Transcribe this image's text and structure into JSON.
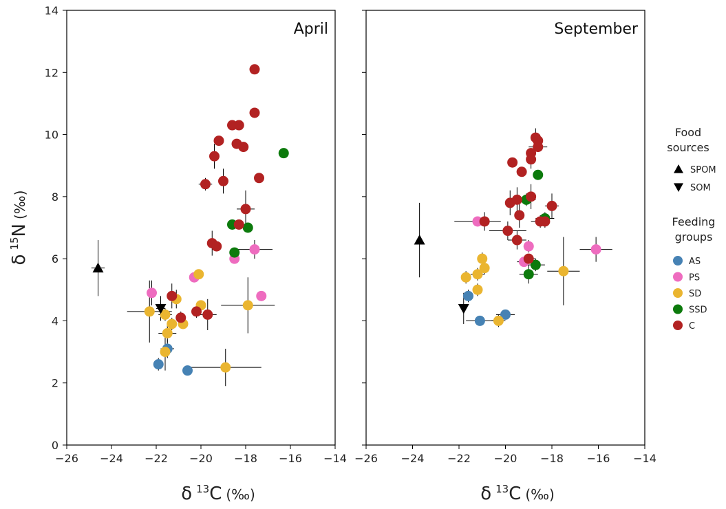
{
  "chart_data": {
    "type": "scatter",
    "shared": {
      "xlim": [
        -26,
        -14
      ],
      "ylim": [
        0,
        14
      ],
      "xticks": [
        "−26",
        "−24",
        "−22",
        "−20",
        "−18",
        "−16",
        "−14"
      ],
      "yticks": [
        "0",
        "2",
        "4",
        "6",
        "8",
        "10",
        "12",
        "14"
      ],
      "xlabel": {
        "delta": "δ",
        "sup": "13",
        "elem": "C",
        "unit": "(‰)"
      },
      "ylabel": {
        "delta": "δ",
        "sup": "15",
        "elem": "N",
        "unit": "(‰)"
      }
    },
    "legend": {
      "placement": "right",
      "sources_title": [
        "Food",
        "sources"
      ],
      "groups_title": [
        "Feeding",
        "groups"
      ],
      "source_items": [
        {
          "key": "SPOM",
          "label": "SPOM",
          "marker": "triangle-up"
        },
        {
          "key": "SOM",
          "label": "SOM",
          "marker": "triangle-down"
        }
      ],
      "group_items": [
        {
          "key": "AS",
          "label": "AS",
          "color": "#4682b4"
        },
        {
          "key": "PS",
          "label": "PS",
          "color": "#ee6cbf"
        },
        {
          "key": "SD",
          "label": "SD",
          "color": "#eab530"
        },
        {
          "key": "SSD",
          "label": "SSD",
          "color": "#0c7a0c"
        },
        {
          "key": "C",
          "label": "C",
          "color": "#b22222"
        }
      ]
    },
    "panels": [
      {
        "title": "April",
        "sources": [
          {
            "group": "SPOM",
            "x": -24.6,
            "y": 5.7,
            "xerr": 0.3,
            "yerr": 0.9
          },
          {
            "group": "SOM",
            "x": -21.8,
            "y": 4.4,
            "xerr": 0.2,
            "yerr": 0.4
          }
        ],
        "points": [
          {
            "group": "AS",
            "x": -21.9,
            "y": 2.6,
            "xerr": 0.2,
            "yerr": 0.2
          },
          {
            "group": "AS",
            "x": -21.5,
            "y": 3.1,
            "xerr": 0.3,
            "yerr": 0.3
          },
          {
            "group": "AS",
            "x": -20.6,
            "y": 2.4,
            "xerr": 0.1,
            "yerr": 0.1
          },
          {
            "group": "PS",
            "x": -22.2,
            "y": 4.9,
            "xerr": 0.1,
            "yerr": 0.4
          },
          {
            "group": "PS",
            "x": -20.3,
            "y": 5.4,
            "xerr": 0.1,
            "yerr": 0.1
          },
          {
            "group": "PS",
            "x": -18.5,
            "y": 6.0,
            "xerr": 0.1,
            "yerr": 0.1
          },
          {
            "group": "PS",
            "x": -17.6,
            "y": 6.3,
            "xerr": 0.8,
            "yerr": 0.3
          },
          {
            "group": "PS",
            "x": -17.3,
            "y": 4.8,
            "xerr": 0.1,
            "yerr": 0.1
          },
          {
            "group": "SD",
            "x": -22.3,
            "y": 4.3,
            "xerr": 1.0,
            "yerr": 1.0
          },
          {
            "group": "SD",
            "x": -21.6,
            "y": 4.2,
            "xerr": 0.3,
            "yerr": 0.2
          },
          {
            "group": "SD",
            "x": -21.5,
            "y": 3.6,
            "xerr": 0.4,
            "yerr": 0.3
          },
          {
            "group": "SD",
            "x": -21.6,
            "y": 3.0,
            "xerr": 0.1,
            "yerr": 0.6
          },
          {
            "group": "SD",
            "x": -21.3,
            "y": 3.9,
            "xerr": 0.2,
            "yerr": 0.2
          },
          {
            "group": "SD",
            "x": -21.1,
            "y": 4.7,
            "xerr": 0.1,
            "yerr": 0.3
          },
          {
            "group": "SD",
            "x": -20.8,
            "y": 3.9,
            "xerr": 0.1,
            "yerr": 0.1
          },
          {
            "group": "SD",
            "x": -20.1,
            "y": 5.5,
            "xerr": 0.1,
            "yerr": 0.1
          },
          {
            "group": "SD",
            "x": -20.0,
            "y": 4.5,
            "xerr": 0.2,
            "yerr": 0.1
          },
          {
            "group": "SD",
            "x": -17.9,
            "y": 4.5,
            "xerr": 1.2,
            "yerr": 0.9
          },
          {
            "group": "SD",
            "x": -18.9,
            "y": 2.5,
            "xerr": 1.6,
            "yerr": 0.6
          },
          {
            "group": "SSD",
            "x": -18.6,
            "y": 7.1,
            "xerr": 0.1,
            "yerr": 0.1
          },
          {
            "group": "SSD",
            "x": -18.5,
            "y": 6.2,
            "xerr": 0.1,
            "yerr": 0.1
          },
          {
            "group": "SSD",
            "x": -17.9,
            "y": 7.0,
            "xerr": 0.1,
            "yerr": 0.1
          },
          {
            "group": "SSD",
            "x": -16.3,
            "y": 9.4,
            "xerr": 0.1,
            "yerr": 0.1
          },
          {
            "group": "C",
            "x": -21.3,
            "y": 4.8,
            "xerr": 0.2,
            "yerr": 0.4
          },
          {
            "group": "C",
            "x": -20.9,
            "y": 4.1,
            "xerr": 0.2,
            "yerr": 0.2
          },
          {
            "group": "C",
            "x": -20.2,
            "y": 4.3,
            "xerr": 0.2,
            "yerr": 0.2
          },
          {
            "group": "C",
            "x": -19.7,
            "y": 4.2,
            "xerr": 0.4,
            "yerr": 0.5
          },
          {
            "group": "C",
            "x": -19.8,
            "y": 8.4,
            "xerr": 0.3,
            "yerr": 0.2
          },
          {
            "group": "C",
            "x": -19.5,
            "y": 6.5,
            "xerr": 0.2,
            "yerr": 0.4
          },
          {
            "group": "C",
            "x": -19.3,
            "y": 6.4,
            "xerr": 0.1,
            "yerr": 0.1
          },
          {
            "group": "C",
            "x": -19.4,
            "y": 9.3,
            "xerr": 0.1,
            "yerr": 0.4
          },
          {
            "group": "C",
            "x": -19.2,
            "y": 9.8,
            "xerr": 0.1,
            "yerr": 0.1
          },
          {
            "group": "C",
            "x": -19.0,
            "y": 8.5,
            "xerr": 0.1,
            "yerr": 0.4
          },
          {
            "group": "C",
            "x": -18.6,
            "y": 10.3,
            "xerr": 0.1,
            "yerr": 0.1
          },
          {
            "group": "C",
            "x": -18.3,
            "y": 10.3,
            "xerr": 0.1,
            "yerr": 0.1
          },
          {
            "group": "C",
            "x": -18.4,
            "y": 9.7,
            "xerr": 0.1,
            "yerr": 0.1
          },
          {
            "group": "C",
            "x": -18.1,
            "y": 9.6,
            "xerr": 0.1,
            "yerr": 0.1
          },
          {
            "group": "C",
            "x": -18.3,
            "y": 7.1,
            "xerr": 0.2,
            "yerr": 0.1
          },
          {
            "group": "C",
            "x": -18.0,
            "y": 7.6,
            "xerr": 0.4,
            "yerr": 0.6
          },
          {
            "group": "C",
            "x": -17.6,
            "y": 12.1,
            "xerr": 0.1,
            "yerr": 0.1
          },
          {
            "group": "C",
            "x": -17.6,
            "y": 10.7,
            "xerr": 0.1,
            "yerr": 0.1
          },
          {
            "group": "C",
            "x": -17.4,
            "y": 8.6,
            "xerr": 0.1,
            "yerr": 0.1
          }
        ]
      },
      {
        "title": "September",
        "sources": [
          {
            "group": "SPOM",
            "x": -23.7,
            "y": 6.6,
            "xerr": 0.1,
            "yerr": 1.2
          },
          {
            "group": "SOM",
            "x": -21.8,
            "y": 4.4,
            "xerr": 0.1,
            "yerr": 0.5
          }
        ],
        "points": [
          {
            "group": "AS",
            "x": -21.6,
            "y": 4.8,
            "xerr": 0.1,
            "yerr": 0.2
          },
          {
            "group": "AS",
            "x": -21.1,
            "y": 4.0,
            "xerr": 0.6,
            "yerr": 0.1
          },
          {
            "group": "AS",
            "x": -20.0,
            "y": 4.2,
            "xerr": 0.4,
            "yerr": 0.1
          },
          {
            "group": "PS",
            "x": -21.2,
            "y": 7.2,
            "xerr": 1.0,
            "yerr": 0.1
          },
          {
            "group": "PS",
            "x": -19.2,
            "y": 5.9,
            "xerr": 0.3,
            "yerr": 0.1
          },
          {
            "group": "PS",
            "x": -19.0,
            "y": 6.4,
            "xerr": 0.1,
            "yerr": 0.2
          },
          {
            "group": "PS",
            "x": -16.1,
            "y": 6.3,
            "xerr": 0.7,
            "yerr": 0.4
          },
          {
            "group": "SD",
            "x": -21.7,
            "y": 5.4,
            "xerr": 0.1,
            "yerr": 0.2
          },
          {
            "group": "SD",
            "x": -21.2,
            "y": 5.5,
            "xerr": 0.3,
            "yerr": 0.2
          },
          {
            "group": "SD",
            "x": -21.2,
            "y": 5.0,
            "xerr": 0.1,
            "yerr": 0.2
          },
          {
            "group": "SD",
            "x": -21.0,
            "y": 6.0,
            "xerr": 0.1,
            "yerr": 0.2
          },
          {
            "group": "SD",
            "x": -20.9,
            "y": 5.7,
            "xerr": 0.1,
            "yerr": 0.2
          },
          {
            "group": "SD",
            "x": -20.3,
            "y": 4.0,
            "xerr": 0.3,
            "yerr": 0.2
          },
          {
            "group": "SD",
            "x": -17.5,
            "y": 5.6,
            "xerr": 0.7,
            "yerr": 1.1
          },
          {
            "group": "SSD",
            "x": -19.1,
            "y": 7.9,
            "xerr": 0.4,
            "yerr": 0.2
          },
          {
            "group": "SSD",
            "x": -19.0,
            "y": 5.5,
            "xerr": 0.4,
            "yerr": 0.3
          },
          {
            "group": "SSD",
            "x": -18.7,
            "y": 5.8,
            "xerr": 0.4,
            "yerr": 0.2
          },
          {
            "group": "SSD",
            "x": -18.3,
            "y": 7.3,
            "xerr": 0.4,
            "yerr": 0.2
          },
          {
            "group": "SSD",
            "x": -18.6,
            "y": 8.7,
            "xerr": 0.1,
            "yerr": 0.1
          },
          {
            "group": "C",
            "x": -20.9,
            "y": 7.2,
            "xerr": 0.3,
            "yerr": 0.3
          },
          {
            "group": "C",
            "x": -19.9,
            "y": 6.9,
            "xerr": 0.8,
            "yerr": 0.3
          },
          {
            "group": "C",
            "x": -19.8,
            "y": 7.8,
            "xerr": 0.2,
            "yerr": 0.4
          },
          {
            "group": "C",
            "x": -19.5,
            "y": 7.9,
            "xerr": 0.3,
            "yerr": 0.4
          },
          {
            "group": "C",
            "x": -19.5,
            "y": 6.6,
            "xerr": 0.4,
            "yerr": 0.3
          },
          {
            "group": "C",
            "x": -19.4,
            "y": 7.4,
            "xerr": 0.1,
            "yerr": 0.4
          },
          {
            "group": "C",
            "x": -19.7,
            "y": 9.1,
            "xerr": 0.1,
            "yerr": 0.1
          },
          {
            "group": "C",
            "x": -19.3,
            "y": 8.8,
            "xerr": 0.1,
            "yerr": 0.1
          },
          {
            "group": "C",
            "x": -18.9,
            "y": 8.0,
            "xerr": 0.1,
            "yerr": 0.4
          },
          {
            "group": "C",
            "x": -18.9,
            "y": 9.2,
            "xerr": 0.1,
            "yerr": 0.3
          },
          {
            "group": "C",
            "x": -18.9,
            "y": 9.4,
            "xerr": 0.1,
            "yerr": 0.1
          },
          {
            "group": "C",
            "x": -18.7,
            "y": 9.9,
            "xerr": 0.1,
            "yerr": 0.3
          },
          {
            "group": "C",
            "x": -18.6,
            "y": 9.8,
            "xerr": 0.1,
            "yerr": 0.1
          },
          {
            "group": "C",
            "x": -18.6,
            "y": 9.6,
            "xerr": 0.4,
            "yerr": 0.1
          },
          {
            "group": "C",
            "x": -18.5,
            "y": 7.2,
            "xerr": 0.4,
            "yerr": 0.2
          },
          {
            "group": "C",
            "x": -18.3,
            "y": 7.2,
            "xerr": 0.1,
            "yerr": 0.2
          },
          {
            "group": "C",
            "x": -18.0,
            "y": 7.7,
            "xerr": 0.3,
            "yerr": 0.4
          },
          {
            "group": "C",
            "x": -19.0,
            "y": 6.0,
            "xerr": 0.3,
            "yerr": 0.1
          }
        ]
      }
    ]
  }
}
